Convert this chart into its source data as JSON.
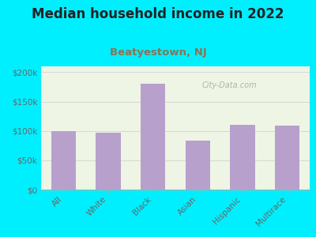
{
  "title": "Median household income in 2022",
  "subtitle": "Beatyestown, NJ",
  "categories": [
    "All",
    "White",
    "Black",
    "Asian",
    "Hispanic",
    "Multirace"
  ],
  "values": [
    100000,
    97000,
    181000,
    83000,
    110000,
    109000
  ],
  "bar_color": "#b8a0cc",
  "background_outer": "#00efff",
  "background_inner": "#eef5e4",
  "ylim": [
    0,
    210000
  ],
  "yticks": [
    0,
    50000,
    100000,
    150000,
    200000
  ],
  "ytick_labels": [
    "$0",
    "$50k",
    "$100k",
    "$150k",
    "$200k"
  ],
  "title_fontsize": 12,
  "subtitle_fontsize": 9.5,
  "subtitle_color": "#8b7355",
  "tick_label_color": "#666666",
  "watermark": "City-Data.com",
  "grid_color": "#cccccc"
}
